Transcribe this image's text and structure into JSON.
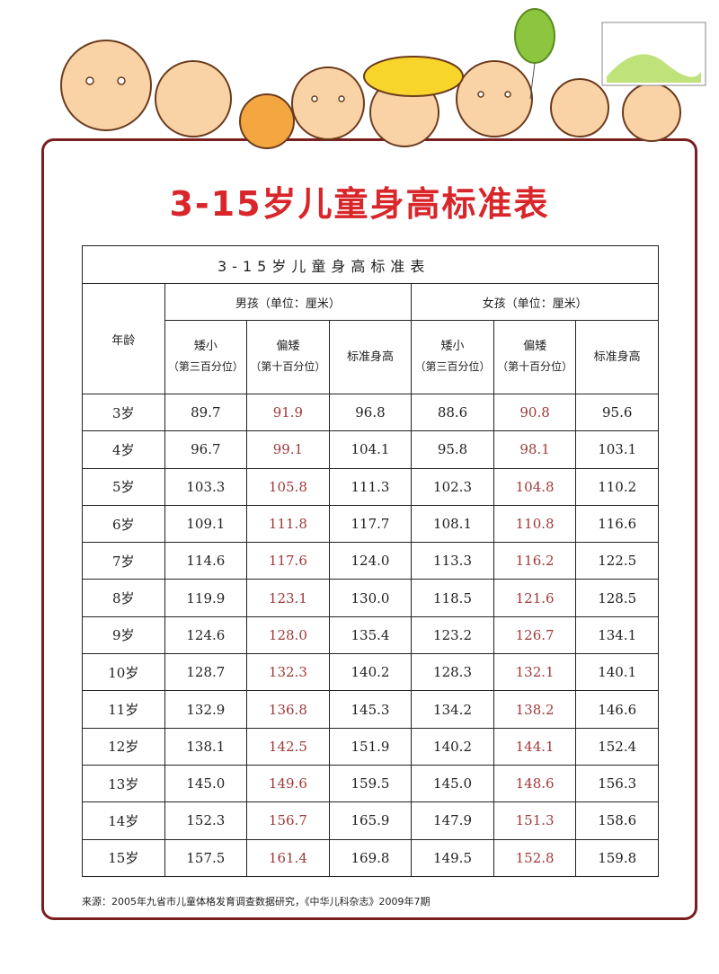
{
  "poster_title": "3-15岁儿童身高标准表",
  "table": {
    "caption": "3-15岁儿童身高标准表",
    "age_header": "年龄",
    "groups": [
      "男孩（单位：厘米）",
      "女孩（单位：厘米）"
    ],
    "subheaders": [
      {
        "label": "矮小",
        "note": "（第三百分位）"
      },
      {
        "label": "偏矮",
        "note": "（第十百分位）"
      },
      {
        "label": "标准身高",
        "note": ""
      }
    ],
    "rows": [
      {
        "age": "3岁",
        "v": [
          "89.7",
          "91.9",
          "96.8",
          "88.6",
          "90.8",
          "95.6"
        ]
      },
      {
        "age": "4岁",
        "v": [
          "96.7",
          "99.1",
          "104.1",
          "95.8",
          "98.1",
          "103.1"
        ]
      },
      {
        "age": "5岁",
        "v": [
          "103.3",
          "105.8",
          "111.3",
          "102.3",
          "104.8",
          "110.2"
        ]
      },
      {
        "age": "6岁",
        "v": [
          "109.1",
          "111.8",
          "117.7",
          "108.1",
          "110.8",
          "116.6"
        ]
      },
      {
        "age": "7岁",
        "v": [
          "114.6",
          "117.6",
          "124.0",
          "113.3",
          "116.2",
          "122.5"
        ]
      },
      {
        "age": "8岁",
        "v": [
          "119.9",
          "123.1",
          "130.0",
          "118.5",
          "121.6",
          "128.5"
        ]
      },
      {
        "age": "9岁",
        "v": [
          "124.6",
          "128.0",
          "135.4",
          "123.2",
          "126.7",
          "134.1"
        ]
      },
      {
        "age": "10岁",
        "v": [
          "128.7",
          "132.3",
          "140.2",
          "128.3",
          "132.1",
          "140.1"
        ]
      },
      {
        "age": "11岁",
        "v": [
          "132.9",
          "136.8",
          "145.3",
          "134.2",
          "138.2",
          "146.6"
        ]
      },
      {
        "age": "12岁",
        "v": [
          "138.1",
          "142.5",
          "151.9",
          "140.2",
          "144.1",
          "152.4"
        ]
      },
      {
        "age": "13岁",
        "v": [
          "145.0",
          "149.6",
          "159.5",
          "145.0",
          "148.6",
          "156.3"
        ]
      },
      {
        "age": "14岁",
        "v": [
          "152.3",
          "156.7",
          "165.9",
          "147.9",
          "151.3",
          "158.6"
        ]
      },
      {
        "age": "15岁",
        "v": [
          "157.5",
          "161.4",
          "169.8",
          "149.5",
          "152.8",
          "159.8"
        ]
      }
    ]
  },
  "source": "来源：2005年九省市儿童体格发育调查数据研究，《中华儿科杂志》2009年7期",
  "colors": {
    "title": "#d8262a",
    "border": "#7a1f1f",
    "highlight": "#a0393a"
  }
}
